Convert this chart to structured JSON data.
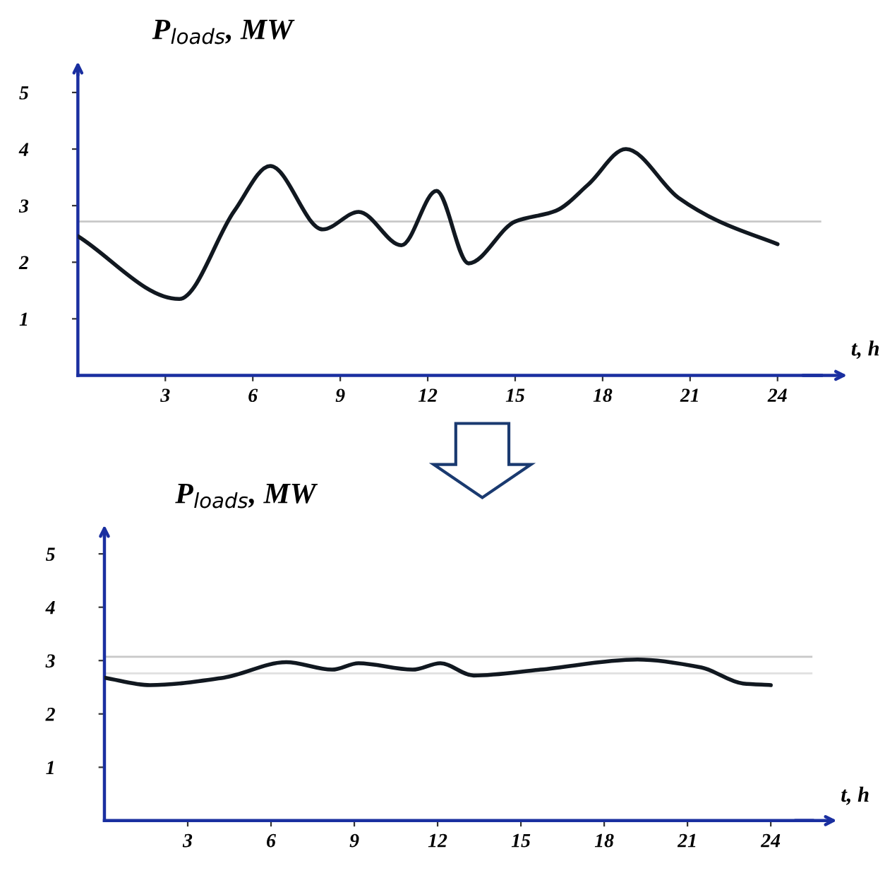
{
  "chart_data": [
    {
      "type": "line",
      "ylabel": "P$_{loads}$, MW",
      "xlabel": "t, h",
      "series": [
        {
          "color": "#111820",
          "x": [
            0,
            3.47,
            5.37,
            6.6,
            8.4,
            9.63,
            11.1,
            12.3,
            13.4,
            15.0,
            16.4,
            17.5,
            18.8,
            20.6,
            22.0,
            24
          ],
          "values": [
            2.46,
            1.35,
            2.91,
            3.7,
            2.58,
            2.89,
            2.3,
            3.26,
            1.98,
            2.72,
            2.91,
            3.37,
            4.0,
            3.14,
            2.72,
            2.32
          ]
        }
      ],
      "xlim": [
        0,
        25.5
      ],
      "xticks": [
        3,
        6,
        9,
        12,
        15,
        18,
        21,
        24
      ],
      "ylim": [
        0,
        5.4
      ],
      "yticks": [
        1,
        2,
        3,
        4,
        5
      ],
      "ref_lines": [
        {
          "axis": "y",
          "value": 2.72,
          "color": "#c8c8c8"
        }
      ],
      "grid": false,
      "legend": false
    },
    {
      "type": "line",
      "ylabel": "P$_{loads}$, MW",
      "xlabel": "t, h",
      "series": [
        {
          "color": "#111820",
          "x": [
            0,
            1.64,
            4.3,
            6.55,
            8.2,
            9.15,
            11.1,
            12.1,
            13.3,
            15.7,
            19.2,
            21.5,
            23.0,
            24
          ],
          "values": [
            2.68,
            2.54,
            2.68,
            2.97,
            2.83,
            2.95,
            2.83,
            2.95,
            2.72,
            2.83,
            3.02,
            2.87,
            2.57,
            2.54
          ]
        }
      ],
      "xlim": [
        0,
        25.5
      ],
      "xticks": [
        3,
        6,
        9,
        12,
        15,
        18,
        21,
        24
      ],
      "ylim": [
        0,
        5.4
      ],
      "yticks": [
        1,
        2,
        3,
        4,
        5
      ],
      "ref_lines": [
        {
          "axis": "y",
          "value": 3.07,
          "color": "#c8c8c8"
        },
        {
          "axis": "y",
          "value": 2.76,
          "color": "#e0e0e0"
        }
      ],
      "grid": false,
      "legend": false
    }
  ]
}
